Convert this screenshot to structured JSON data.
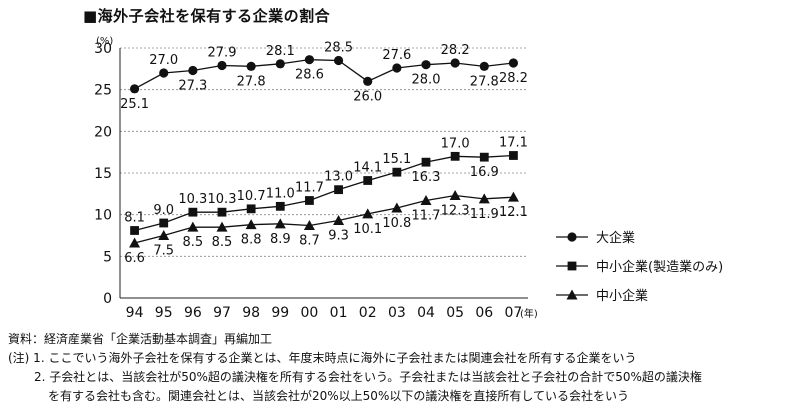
{
  "title": "■海外子会社を保有する企業の割合",
  "chart_data": {
    "type": "line",
    "ylabel": "(%)",
    "xlabel": "(年)",
    "ylim": [
      0,
      30
    ],
    "yticks": [
      "0",
      "5",
      "10",
      "15",
      "20",
      "25",
      "30"
    ],
    "categories": [
      "94",
      "95",
      "96",
      "97",
      "98",
      "99",
      "00",
      "01",
      "02",
      "03",
      "04",
      "05",
      "06",
      "07"
    ],
    "grid": "horizontal-dashed",
    "legend_position": "right",
    "series": [
      {
        "name": "大企業",
        "marker": "circle",
        "values": [
          25.1,
          27.0,
          27.3,
          27.9,
          27.8,
          28.1,
          28.6,
          28.5,
          26.0,
          27.6,
          28.0,
          28.2,
          27.8,
          28.2
        ],
        "labels": [
          "25.1",
          "27.0",
          "27.3",
          "27.9",
          "27.8",
          "28.1",
          "28.6",
          "28.5",
          "26.0",
          "27.6",
          "28.0",
          "28.2",
          "27.8",
          "28.2"
        ]
      },
      {
        "name": "中小企業(製造業のみ)",
        "marker": "square",
        "values": [
          8.1,
          9.0,
          10.3,
          10.3,
          10.7,
          11.0,
          11.7,
          13.0,
          14.1,
          15.1,
          16.3,
          17.0,
          16.9,
          17.1
        ],
        "labels": [
          "8.1",
          "9.0",
          "10.3",
          "10.3",
          "10.7",
          "11.0",
          "11.7",
          "13.0",
          "14.1",
          "15.1",
          "16.3",
          "17.0",
          "16.9",
          "17.1"
        ]
      },
      {
        "name": "中小企業",
        "marker": "triangle",
        "values": [
          6.6,
          7.5,
          8.5,
          8.5,
          8.8,
          8.9,
          8.7,
          9.3,
          10.1,
          10.8,
          11.7,
          12.3,
          11.9,
          12.1
        ],
        "labels": [
          "6.6",
          "7.5",
          "8.5",
          "8.5",
          "8.8",
          "8.9",
          "8.7",
          "9.3",
          "10.1",
          "10.8",
          "11.7",
          "12.3",
          "11.9",
          "12.1"
        ]
      }
    ]
  },
  "notes": {
    "source": "資料：経済産業省「企業活動基本調査」再編加工",
    "note1": "(注) 1. ここでいう海外子会社を保有する企業とは、年度末時点に海外に子会社または関連会社を所有する企業をいう",
    "note2": "2. 子会社とは、当該会社が50%超の議決権を所有する会社をいう。子会社または当該会社と子会社の合計で50%超の議決権",
    "note2b": "を有する会社も含む。関連会社とは、当該会社が20%以上50%以下の議決権を直接所有している会社をいう"
  }
}
